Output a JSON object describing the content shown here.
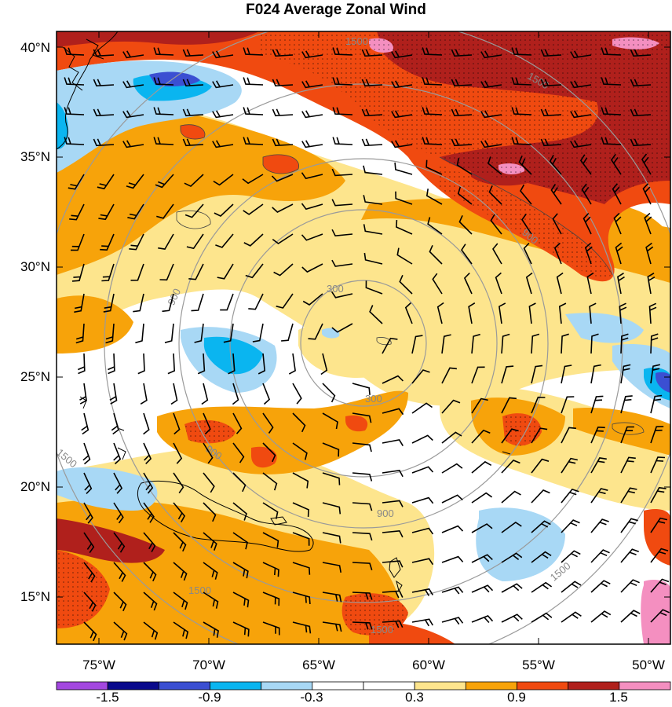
{
  "title": "F024 Average Zonal Wind",
  "lat_labels": [
    "40°N",
    "35°N",
    "30°N",
    "25°N",
    "20°N",
    "15°N"
  ],
  "lon_labels": [
    "75°W",
    "70°W",
    "65°W",
    "60°W",
    "55°W",
    "50°W"
  ],
  "colorbar": {
    "colors": [
      "#a347e0",
      "#0a0a8c",
      "#3b4fd2",
      "#0ab5f0",
      "#a8d8f5",
      "#ffffff",
      "#ffffff",
      "#fde58d",
      "#f7a30a",
      "#f04a10",
      "#b0201c",
      "#f48fc0"
    ],
    "labels": [
      "-1.5",
      "-0.9",
      "-0.3",
      "0.3",
      "0.9",
      "1.5"
    ]
  },
  "ring_labels": [
    "300",
    "300",
    "900",
    "900",
    "900",
    "900",
    "1500",
    "1500",
    "1500",
    "1500",
    "1500",
    "1500"
  ],
  "colors": {
    "ring": "#9a9a9a",
    "coast": "#000000",
    "barb": "#000000"
  }
}
